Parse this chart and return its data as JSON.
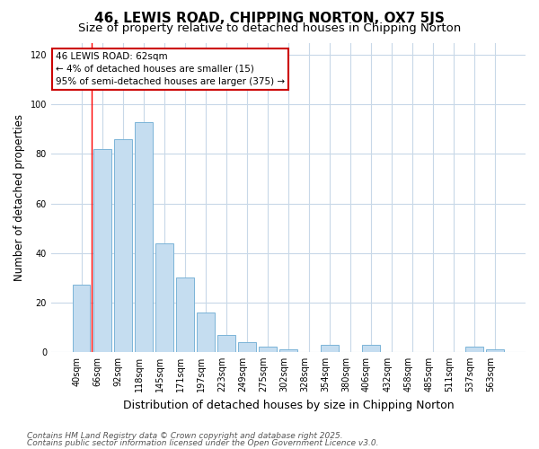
{
  "title": "46, LEWIS ROAD, CHIPPING NORTON, OX7 5JS",
  "subtitle": "Size of property relative to detached houses in Chipping Norton",
  "xlabel": "Distribution of detached houses by size in Chipping Norton",
  "ylabel": "Number of detached properties",
  "categories": [
    "40sqm",
    "66sqm",
    "92sqm",
    "118sqm",
    "145sqm",
    "171sqm",
    "197sqm",
    "223sqm",
    "249sqm",
    "275sqm",
    "302sqm",
    "328sqm",
    "354sqm",
    "380sqm",
    "406sqm",
    "432sqm",
    "458sqm",
    "485sqm",
    "511sqm",
    "537sqm",
    "563sqm"
  ],
  "values": [
    27,
    82,
    86,
    93,
    44,
    30,
    16,
    7,
    4,
    2,
    1,
    0,
    3,
    0,
    3,
    0,
    0,
    0,
    0,
    2,
    1
  ],
  "bar_color": "#c5ddf0",
  "bar_edge_color": "#7bb4d8",
  "red_line_index": 1,
  "annotation_text": "46 LEWIS ROAD: 62sqm\n← 4% of detached houses are smaller (15)\n95% of semi-detached houses are larger (375) →",
  "annotation_box_facecolor": "#ffffff",
  "annotation_box_edgecolor": "#cc0000",
  "footnote1": "Contains HM Land Registry data © Crown copyright and database right 2025.",
  "footnote2": "Contains public sector information licensed under the Open Government Licence v3.0.",
  "ylim": [
    0,
    125
  ],
  "plot_bg_color": "#ffffff",
  "fig_bg_color": "#ffffff",
  "grid_color": "#c8d8e8",
  "title_fontsize": 11,
  "subtitle_fontsize": 9.5,
  "tick_fontsize": 7,
  "ylabel_fontsize": 8.5,
  "xlabel_fontsize": 9,
  "footnote_fontsize": 6.5
}
